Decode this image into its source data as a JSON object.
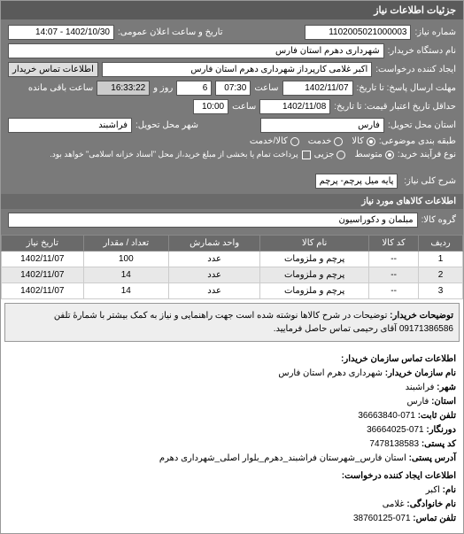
{
  "header": {
    "title": "جزئیات اطلاعات نیاز"
  },
  "form": {
    "req_no_label": "شماره نیاز:",
    "req_no": "1102005021000003",
    "announce_label": "تاریخ و ساعت اعلان عمومی:",
    "announce_val": "1402/10/30 - 14:07",
    "buyer_org_label": "نام دستگاه خریدار:",
    "buyer_org": "شهرداری دهرم استان فارس",
    "creator_label": "ایجاد کننده درخواست:",
    "creator": "اکبر غلامی کارپرداز شهرداری دهرم استان فارس",
    "contact_btn": "اطلاعات تماس خریدار",
    "deadline_label": "مهلت ارسال پاسخ: تا تاریخ:",
    "deadline_date": "1402/11/07",
    "time_label": "ساعت",
    "deadline_time": "07:30",
    "days_remain": "6",
    "days_label": "روز و",
    "countdown": "16:33:22",
    "countdown_label": "ساعت باقی مانده",
    "valid_label": "حداقل تاریخ اعتبار قیمت: تا تاریخ:",
    "valid_date": "1402/11/08",
    "valid_time": "10:00",
    "province_label": "استان محل تحویل:",
    "province": "فارس",
    "city_label": "شهر محل تحویل:",
    "city": "فراشبند",
    "type_label": "طبقه بندی موضوعی:",
    "type_goods": "کالا",
    "type_service": "خدمت",
    "type_both": "کالا/خدمت",
    "process_label": "نوع فرآیند خرید:",
    "proc_small": "متوسط",
    "proc_med": "جزیی",
    "proc_note": "پرداخت تمام یا بخشی از مبلغ خرید،از محل \"اسناد خزانه اسلامی\" خواهد بود.",
    "summary_label": "شرح کلی نیاز:",
    "summary": "پایه میل پرچم- پرچم"
  },
  "items_section": {
    "title": "اطلاعات کالاهای مورد نیاز"
  },
  "group": {
    "label": "گروه کالا:",
    "value": "مبلمان و دکوراسیون"
  },
  "table": {
    "cols": [
      "ردیف",
      "کد کالا",
      "نام کالا",
      "واحد شمارش",
      "تعداد / مقدار",
      "تاریخ نیاز"
    ],
    "rows": [
      [
        "1",
        "--",
        "پرچم و ملزومات",
        "عدد",
        "100",
        "1402/11/07"
      ],
      [
        "2",
        "--",
        "پرچم و ملزومات",
        "عدد",
        "14",
        "1402/11/07"
      ],
      [
        "3",
        "--",
        "پرچم و ملزومات",
        "عدد",
        "14",
        "1402/11/07"
      ]
    ]
  },
  "buyer_note": {
    "label": "توضیحات خریدار:",
    "text": "توضیحات در شرح کالاها نوشته شده است جهت راهنمایی و نیاز به کمک بیشتر با شمارهٔ تلفن 09171386586 آقای رحیمی تماس حاصل فرمایید."
  },
  "contact": {
    "title": "اطلاعات تماس سازمان خریدار:",
    "org_label": "نام سازمان خریدار:",
    "org": "شهرداری دهرم استان فارس",
    "city_label": "شهر:",
    "city": "فراشبند",
    "province_label": "استان:",
    "province": "فارس",
    "phone_label": "تلفن ثابت:",
    "phone": "071-36663840",
    "fax_label": "دورنگار:",
    "fax": "071-36664025",
    "postal_label": "کد پستی:",
    "postal": "7478138583",
    "addr_label": "آدرس پستی:",
    "addr": "استان فارس_شهرستان فراشبند_دهرم_بلوار اصلی_شهرداری دهرم",
    "creator_title": "اطلاعات ایجاد کننده درخواست:",
    "name_label": "نام:",
    "name": "اکبر",
    "lname_label": "نام خانوادگی:",
    "lname": "غلامی",
    "cphone_label": "تلفن تماس:",
    "cphone": "071-38760125"
  }
}
